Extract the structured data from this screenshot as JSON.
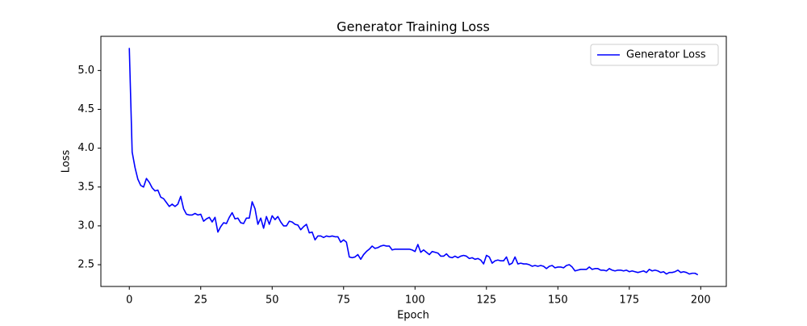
{
  "chart_data": {
    "type": "line",
    "title": "Generator Training Loss",
    "xlabel": "Epoch",
    "ylabel": "Loss",
    "x": [
      0,
      1,
      2,
      3,
      4,
      5,
      6,
      7,
      8,
      9,
      10,
      11,
      12,
      13,
      14,
      15,
      16,
      17,
      18,
      19,
      20,
      21,
      22,
      23,
      24,
      25,
      26,
      27,
      28,
      29,
      30,
      31,
      32,
      33,
      34,
      35,
      36,
      37,
      38,
      39,
      40,
      41,
      42,
      43,
      44,
      45,
      46,
      47,
      48,
      49,
      50,
      51,
      52,
      53,
      54,
      55,
      56,
      57,
      58,
      59,
      60,
      61,
      62,
      63,
      64,
      65,
      66,
      67,
      68,
      69,
      70,
      71,
      72,
      73,
      74,
      75,
      76,
      77,
      78,
      79,
      80,
      81,
      82,
      83,
      84,
      85,
      86,
      87,
      88,
      89,
      90,
      91,
      92,
      93,
      94,
      95,
      96,
      97,
      98,
      99,
      100,
      101,
      102,
      103,
      104,
      105,
      106,
      107,
      108,
      109,
      110,
      111,
      112,
      113,
      114,
      115,
      116,
      117,
      118,
      119,
      120,
      121,
      122,
      123,
      124,
      125,
      126,
      127,
      128,
      129,
      130,
      131,
      132,
      133,
      134,
      135,
      136,
      137,
      138,
      139,
      140,
      141,
      142,
      143,
      144,
      145,
      146,
      147,
      148,
      149,
      150,
      151,
      152,
      153,
      154,
      155,
      156,
      157,
      158,
      159,
      160,
      161,
      162,
      163,
      164,
      165,
      166,
      167,
      168,
      169,
      170,
      171,
      172,
      173,
      174,
      175,
      176,
      177,
      178,
      179,
      180,
      181,
      182,
      183,
      184,
      185,
      186,
      187,
      188,
      189,
      190,
      191,
      192,
      193,
      194,
      195,
      196,
      197,
      198,
      199
    ],
    "series": [
      {
        "name": "Generator Loss",
        "color": "#0000ff",
        "values": [
          5.29,
          3.95,
          3.75,
          3.6,
          3.52,
          3.5,
          3.61,
          3.56,
          3.49,
          3.45,
          3.46,
          3.37,
          3.35,
          3.3,
          3.25,
          3.28,
          3.25,
          3.28,
          3.38,
          3.22,
          3.15,
          3.14,
          3.14,
          3.16,
          3.14,
          3.15,
          3.06,
          3.09,
          3.11,
          3.05,
          3.11,
          2.92,
          2.99,
          3.04,
          3.03,
          3.11,
          3.17,
          3.09,
          3.1,
          3.04,
          3.03,
          3.1,
          3.1,
          3.31,
          3.22,
          3.02,
          3.1,
          2.97,
          3.12,
          3.02,
          3.13,
          3.08,
          3.12,
          3.05,
          3.0,
          3.0,
          3.06,
          3.05,
          3.02,
          3.01,
          2.95,
          2.99,
          3.02,
          2.91,
          2.92,
          2.82,
          2.87,
          2.87,
          2.85,
          2.87,
          2.86,
          2.87,
          2.86,
          2.86,
          2.79,
          2.82,
          2.79,
          2.6,
          2.59,
          2.6,
          2.63,
          2.57,
          2.63,
          2.67,
          2.7,
          2.74,
          2.71,
          2.72,
          2.74,
          2.75,
          2.74,
          2.74,
          2.69,
          2.7,
          2.7,
          2.7,
          2.7,
          2.7,
          2.7,
          2.69,
          2.67,
          2.76,
          2.66,
          2.69,
          2.66,
          2.63,
          2.67,
          2.66,
          2.65,
          2.61,
          2.61,
          2.64,
          2.6,
          2.59,
          2.61,
          2.59,
          2.61,
          2.62,
          2.61,
          2.58,
          2.59,
          2.57,
          2.58,
          2.56,
          2.51,
          2.62,
          2.6,
          2.52,
          2.55,
          2.56,
          2.55,
          2.55,
          2.6,
          2.5,
          2.52,
          2.6,
          2.51,
          2.52,
          2.51,
          2.51,
          2.5,
          2.48,
          2.49,
          2.48,
          2.49,
          2.48,
          2.45,
          2.48,
          2.49,
          2.46,
          2.47,
          2.47,
          2.46,
          2.49,
          2.5,
          2.47,
          2.42,
          2.43,
          2.44,
          2.44,
          2.44,
          2.47,
          2.44,
          2.45,
          2.45,
          2.43,
          2.43,
          2.42,
          2.45,
          2.43,
          2.42,
          2.43,
          2.43,
          2.42,
          2.43,
          2.41,
          2.42,
          2.41,
          2.4,
          2.41,
          2.42,
          2.4,
          2.44,
          2.42,
          2.43,
          2.42,
          2.4,
          2.41,
          2.38,
          2.4,
          2.4,
          2.41,
          2.43,
          2.4,
          2.41,
          2.4,
          2.38,
          2.39,
          2.39,
          2.37
        ]
      }
    ],
    "xlim": [
      -9.95,
      208.95
    ],
    "xticks": [
      0,
      25,
      50,
      75,
      100,
      125,
      150,
      175,
      200
    ],
    "ylim": [
      2.22,
      5.44
    ],
    "yticks": [
      2.5,
      {
        "value": 3,
        "label": "3.0"
      },
      3.5,
      {
        "value": 4,
        "label": "4.0"
      },
      4.5,
      {
        "value": 5,
        "label": "5.0"
      }
    ],
    "grid": false,
    "legend": "upper right"
  }
}
